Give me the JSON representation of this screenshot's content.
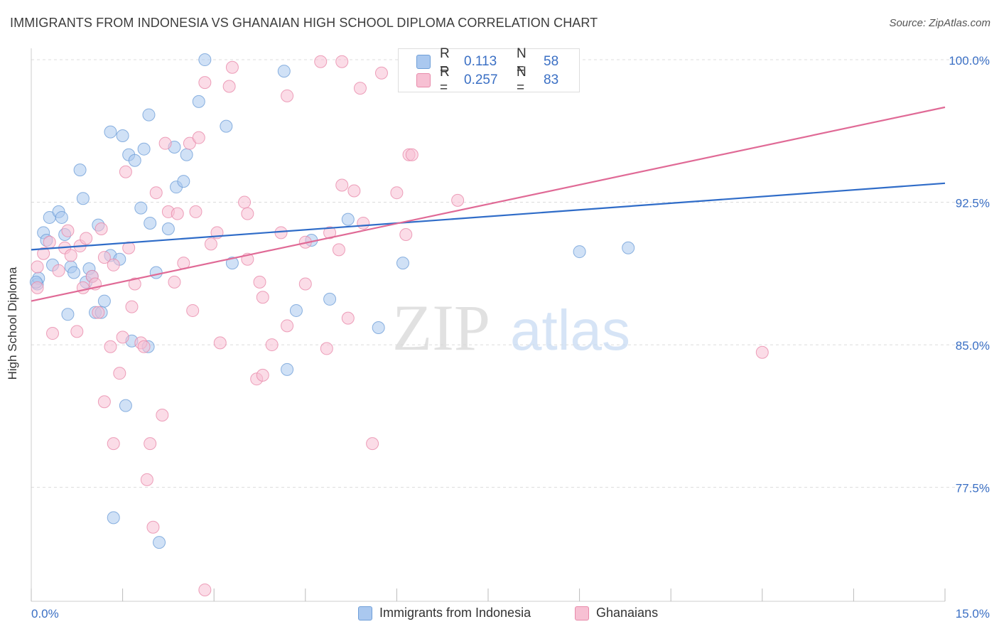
{
  "header": {
    "title": "IMMIGRANTS FROM INDONESIA VS GHANAIAN HIGH SCHOOL DIPLOMA CORRELATION CHART",
    "source": "Source: ZipAtlas.com"
  },
  "watermark": {
    "zip": "ZIP",
    "atlas": "atlas"
  },
  "correlation_legend": [
    {
      "series": "Immigrants from Indonesia",
      "r_label": "R =",
      "r_value": "0.113",
      "n_label": "N =",
      "n_value": "58",
      "fill": "#aac8ef",
      "stroke": "#6f9fd8"
    },
    {
      "series": "Ghanaians",
      "r_label": "R =",
      "r_value": "0.257",
      "n_label": "N =",
      "n_value": "83",
      "fill": "#f7c0d3",
      "stroke": "#e88aaa"
    }
  ],
  "chart_data": {
    "type": "scatter",
    "title": "IMMIGRANTS FROM INDONESIA VS GHANAIAN HIGH SCHOOL DIPLOMA CORRELATION CHART",
    "xlabel": "",
    "ylabel": "High School Diploma",
    "xlim": [
      0,
      15
    ],
    "ylim": [
      71.5,
      100.6
    ],
    "x_tick_labels": [
      "0.0%",
      "15.0%"
    ],
    "y_ticks": [
      77.5,
      85.0,
      92.5,
      100.0
    ],
    "y_tick_labels": [
      "77.5%",
      "85.0%",
      "92.5%",
      "100.0%"
    ],
    "grid": true,
    "legend": [
      "Immigrants from Indonesia",
      "Ghanaians"
    ],
    "series": [
      {
        "name": "Immigrants from Indonesia",
        "color": "#6f9fd8",
        "fill": "#aac8ef",
        "line_color": "#2f6cc8",
        "trend": [
          [
            0,
            90.0
          ],
          [
            15,
            93.5
          ]
        ],
        "points": [
          [
            0.1,
            88.2
          ],
          [
            0.12,
            88.5
          ],
          [
            0.2,
            90.9
          ],
          [
            0.25,
            90.5
          ],
          [
            0.3,
            91.7
          ],
          [
            0.35,
            89.2
          ],
          [
            0.45,
            92.0
          ],
          [
            0.5,
            91.7
          ],
          [
            0.55,
            90.8
          ],
          [
            0.6,
            86.6
          ],
          [
            0.65,
            89.1
          ],
          [
            0.7,
            88.8
          ],
          [
            0.8,
            94.2
          ],
          [
            0.85,
            92.7
          ],
          [
            0.9,
            88.3
          ],
          [
            0.95,
            89.0
          ],
          [
            1.0,
            88.6
          ],
          [
            1.05,
            86.7
          ],
          [
            1.1,
            91.3
          ],
          [
            1.15,
            86.7
          ],
          [
            1.2,
            87.3
          ],
          [
            1.3,
            89.7
          ],
          [
            1.3,
            96.2
          ],
          [
            1.45,
            89.5
          ],
          [
            1.5,
            96.0
          ],
          [
            1.55,
            81.8
          ],
          [
            1.6,
            95.0
          ],
          [
            1.35,
            75.9
          ],
          [
            1.65,
            85.2
          ],
          [
            1.7,
            94.7
          ],
          [
            1.8,
            92.2
          ],
          [
            1.85,
            95.3
          ],
          [
            1.93,
            97.1
          ],
          [
            1.95,
            91.4
          ],
          [
            2.05,
            88.8
          ],
          [
            2.1,
            74.6
          ],
          [
            2.25,
            91.1
          ],
          [
            2.35,
            95.4
          ],
          [
            2.38,
            93.3
          ],
          [
            2.5,
            93.6
          ],
          [
            2.55,
            95.0
          ],
          [
            2.75,
            97.8
          ],
          [
            2.85,
            100.0
          ],
          [
            3.2,
            96.5
          ],
          [
            3.3,
            89.3
          ],
          [
            4.15,
            99.4
          ],
          [
            4.2,
            83.7
          ],
          [
            4.35,
            86.8
          ],
          [
            4.6,
            90.5
          ],
          [
            4.9,
            87.4
          ],
          [
            5.2,
            91.6
          ],
          [
            5.7,
            85.9
          ],
          [
            6.1,
            89.3
          ],
          [
            9.0,
            89.9
          ],
          [
            9.8,
            90.1
          ],
          [
            8.6,
            98.7
          ],
          [
            0.08,
            88.3
          ],
          [
            1.92,
            84.9
          ]
        ]
      },
      {
        "name": "Ghanaians",
        "color": "#e88aaa",
        "fill": "#f7c0d3",
        "line_color": "#e06a96",
        "trend": [
          [
            0,
            87.3
          ],
          [
            15,
            97.5
          ]
        ],
        "points": [
          [
            0.1,
            89.1
          ],
          [
            0.1,
            88.0
          ],
          [
            0.2,
            89.8
          ],
          [
            0.3,
            90.4
          ],
          [
            0.35,
            85.6
          ],
          [
            0.45,
            88.9
          ],
          [
            0.55,
            90.1
          ],
          [
            0.6,
            91.0
          ],
          [
            0.65,
            89.7
          ],
          [
            0.75,
            85.7
          ],
          [
            0.8,
            90.2
          ],
          [
            0.85,
            88.0
          ],
          [
            0.9,
            90.6
          ],
          [
            1.0,
            88.6
          ],
          [
            1.05,
            88.2
          ],
          [
            1.1,
            86.7
          ],
          [
            1.15,
            91.1
          ],
          [
            1.2,
            82.0
          ],
          [
            1.3,
            84.9
          ],
          [
            1.35,
            79.8
          ],
          [
            1.35,
            89.2
          ],
          [
            1.45,
            83.5
          ],
          [
            1.5,
            85.4
          ],
          [
            1.55,
            94.1
          ],
          [
            1.6,
            90.1
          ],
          [
            1.65,
            87.0
          ],
          [
            1.7,
            88.2
          ],
          [
            1.8,
            85.1
          ],
          [
            1.85,
            84.9
          ],
          [
            1.9,
            77.9
          ],
          [
            1.95,
            79.8
          ],
          [
            2.0,
            75.4
          ],
          [
            2.05,
            93.0
          ],
          [
            2.15,
            81.3
          ],
          [
            2.2,
            95.6
          ],
          [
            2.25,
            92.0
          ],
          [
            2.35,
            88.3
          ],
          [
            2.4,
            91.9
          ],
          [
            2.5,
            89.3
          ],
          [
            2.6,
            95.6
          ],
          [
            2.65,
            86.8
          ],
          [
            2.7,
            92.0
          ],
          [
            2.75,
            95.9
          ],
          [
            2.85,
            72.1
          ],
          [
            2.95,
            90.3
          ],
          [
            3.05,
            90.9
          ],
          [
            3.1,
            85.1
          ],
          [
            3.25,
            98.6
          ],
          [
            3.3,
            99.6
          ],
          [
            3.5,
            92.5
          ],
          [
            3.55,
            91.9
          ],
          [
            3.55,
            89.5
          ],
          [
            3.7,
            83.2
          ],
          [
            3.75,
            88.3
          ],
          [
            3.8,
            83.4
          ],
          [
            3.8,
            87.5
          ],
          [
            3.95,
            85.0
          ],
          [
            4.1,
            90.9
          ],
          [
            4.2,
            86.0
          ],
          [
            4.2,
            98.1
          ],
          [
            4.5,
            90.4
          ],
          [
            4.5,
            88.2
          ],
          [
            4.75,
            99.9
          ],
          [
            4.85,
            84.8
          ],
          [
            4.9,
            90.9
          ],
          [
            5.05,
            90.0
          ],
          [
            5.1,
            93.4
          ],
          [
            5.2,
            86.4
          ],
          [
            5.3,
            93.1
          ],
          [
            5.4,
            98.5
          ],
          [
            5.45,
            91.4
          ],
          [
            5.6,
            79.8
          ],
          [
            5.75,
            99.3
          ],
          [
            6.0,
            93.0
          ],
          [
            6.15,
            90.8
          ],
          [
            6.2,
            95.0
          ],
          [
            6.25,
            95.0
          ],
          [
            7.0,
            92.6
          ],
          [
            12.0,
            84.6
          ],
          [
            6.9,
            99.9
          ],
          [
            5.1,
            99.9
          ],
          [
            1.2,
            89.6
          ],
          [
            2.85,
            98.8
          ]
        ]
      }
    ]
  },
  "bottom_legend": [
    "Immigrants from Indonesia",
    "Ghanaians"
  ]
}
